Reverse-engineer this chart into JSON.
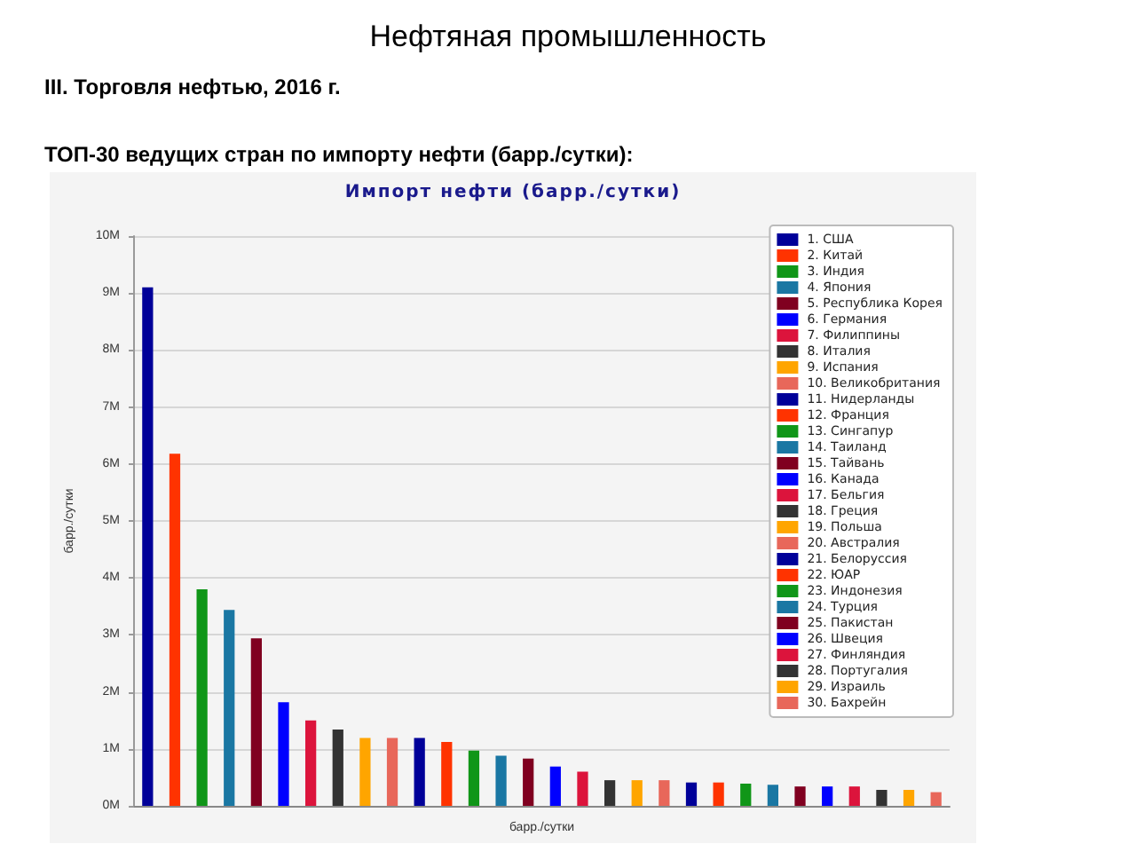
{
  "chart_data": {
    "type": "bar",
    "title": "Нефтяная промышленность",
    "subtitle": "III. Торговля нефтью, 2016 г.",
    "annotations": [
      "ТОП-30 ведущих стран по импорту нефти (барр./сутки):",
      "Импорт нефти (барр./сутки)"
    ],
    "xlabel": "барр./сутки",
    "ylabel": "барр./сутки",
    "categories": [
      null,
      null,
      null,
      null,
      null,
      null,
      null,
      null,
      null,
      null,
      null,
      null,
      null,
      null,
      null,
      null,
      null,
      null,
      null,
      null,
      null,
      null,
      null,
      null,
      null,
      null,
      null,
      null,
      null,
      null
    ],
    "ylim": [
      0,
      10
    ],
    "yticks": [
      {
        "value": 0,
        "label": "0M"
      },
      {
        "value": 1,
        "label": "1M"
      },
      {
        "value": 2,
        "label": "2M"
      },
      {
        "value": 3,
        "label": "3M"
      },
      {
        "value": 4,
        "label": "4M"
      },
      {
        "value": 5,
        "label": "5M"
      },
      {
        "value": 6,
        "label": "6M"
      },
      {
        "value": 7,
        "label": "7M"
      },
      {
        "value": 8,
        "label": "8M"
      },
      {
        "value": 9,
        "label": "9M"
      },
      {
        "value": 10,
        "label": "10M"
      }
    ],
    "grid": "y",
    "legend": "top right",
    "stacked": true,
    "series": [
      {
        "name": "1. США",
        "color": "#000099",
        "values": [
          9.1,
          null,
          null,
          null,
          null,
          null,
          null,
          null,
          null,
          null,
          null,
          null,
          null,
          null,
          null,
          null,
          null,
          null,
          null,
          null,
          null,
          null,
          null,
          null,
          null,
          null,
          null,
          null,
          null,
          null
        ]
      },
      {
        "name": "2. Китай",
        "color": "#ff3300",
        "values": [
          null,
          6.18,
          null,
          null,
          null,
          null,
          null,
          null,
          null,
          null,
          null,
          null,
          null,
          null,
          null,
          null,
          null,
          null,
          null,
          null,
          null,
          null,
          null,
          null,
          null,
          null,
          null,
          null,
          null,
          null
        ]
      },
      {
        "name": "3. Индия",
        "color": "#109618",
        "values": [
          null,
          null,
          3.8,
          null,
          null,
          null,
          null,
          null,
          null,
          null,
          null,
          null,
          null,
          null,
          null,
          null,
          null,
          null,
          null,
          null,
          null,
          null,
          null,
          null,
          null,
          null,
          null,
          null,
          null,
          null
        ]
      },
      {
        "name": "4. Япония",
        "color": "#1a77a3",
        "values": [
          null,
          null,
          null,
          3.44,
          null,
          null,
          null,
          null,
          null,
          null,
          null,
          null,
          null,
          null,
          null,
          null,
          null,
          null,
          null,
          null,
          null,
          null,
          null,
          null,
          null,
          null,
          null,
          null,
          null,
          null
        ]
      },
      {
        "name": "5. Республика Корея",
        "color": "#800020",
        "values": [
          null,
          null,
          null,
          null,
          2.94,
          null,
          null,
          null,
          null,
          null,
          null,
          null,
          null,
          null,
          null,
          null,
          null,
          null,
          null,
          null,
          null,
          null,
          null,
          null,
          null,
          null,
          null,
          null,
          null,
          null
        ]
      },
      {
        "name": "6. Германия",
        "color": "#0000ff",
        "values": [
          null,
          null,
          null,
          null,
          null,
          1.82,
          null,
          null,
          null,
          null,
          null,
          null,
          null,
          null,
          null,
          null,
          null,
          null,
          null,
          null,
          null,
          null,
          null,
          null,
          null,
          null,
          null,
          null,
          null,
          null
        ]
      },
      {
        "name": "7. Филиппины",
        "color": "#dc143c",
        "values": [
          null,
          null,
          null,
          null,
          null,
          null,
          1.5,
          null,
          null,
          null,
          null,
          null,
          null,
          null,
          null,
          null,
          null,
          null,
          null,
          null,
          null,
          null,
          null,
          null,
          null,
          null,
          null,
          null,
          null,
          null
        ]
      },
      {
        "name": "8. Италия",
        "color": "#333333",
        "values": [
          null,
          null,
          null,
          null,
          null,
          null,
          null,
          1.34,
          null,
          null,
          null,
          null,
          null,
          null,
          null,
          null,
          null,
          null,
          null,
          null,
          null,
          null,
          null,
          null,
          null,
          null,
          null,
          null,
          null,
          null
        ]
      },
      {
        "name": "9. Испания",
        "color": "#ffa500",
        "values": [
          null,
          null,
          null,
          null,
          null,
          null,
          null,
          null,
          1.19,
          null,
          null,
          null,
          null,
          null,
          null,
          null,
          null,
          null,
          null,
          null,
          null,
          null,
          null,
          null,
          null,
          null,
          null,
          null,
          null,
          null
        ]
      },
      {
        "name": "10. Великобритания",
        "color": "#e8675a",
        "values": [
          null,
          null,
          null,
          null,
          null,
          null,
          null,
          null,
          null,
          1.19,
          null,
          null,
          null,
          null,
          null,
          null,
          null,
          null,
          null,
          null,
          null,
          null,
          null,
          null,
          null,
          null,
          null,
          null,
          null,
          null
        ]
      },
      {
        "name": "11. Нидерланды",
        "color": "#000099",
        "values": [
          null,
          null,
          null,
          null,
          null,
          null,
          null,
          null,
          null,
          null,
          1.19,
          null,
          null,
          null,
          null,
          null,
          null,
          null,
          null,
          null,
          null,
          null,
          null,
          null,
          null,
          null,
          null,
          null,
          null,
          null
        ]
      },
      {
        "name": "12. Франция",
        "color": "#ff3300",
        "values": [
          null,
          null,
          null,
          null,
          null,
          null,
          null,
          null,
          null,
          null,
          null,
          1.12,
          null,
          null,
          null,
          null,
          null,
          null,
          null,
          null,
          null,
          null,
          null,
          null,
          null,
          null,
          null,
          null,
          null,
          null
        ]
      },
      {
        "name": "13. Сингапур",
        "color": "#109618",
        "values": [
          null,
          null,
          null,
          null,
          null,
          null,
          null,
          null,
          null,
          null,
          null,
          null,
          0.97,
          null,
          null,
          null,
          null,
          null,
          null,
          null,
          null,
          null,
          null,
          null,
          null,
          null,
          null,
          null,
          null,
          null
        ]
      },
      {
        "name": "14. Таиланд",
        "color": "#1a77a3",
        "values": [
          null,
          null,
          null,
          null,
          null,
          null,
          null,
          null,
          null,
          null,
          null,
          null,
          null,
          0.88,
          null,
          null,
          null,
          null,
          null,
          null,
          null,
          null,
          null,
          null,
          null,
          null,
          null,
          null,
          null,
          null
        ]
      },
      {
        "name": "15. Тайвань",
        "color": "#800020",
        "values": [
          null,
          null,
          null,
          null,
          null,
          null,
          null,
          null,
          null,
          null,
          null,
          null,
          null,
          null,
          0.83,
          null,
          null,
          null,
          null,
          null,
          null,
          null,
          null,
          null,
          null,
          null,
          null,
          null,
          null,
          null
        ]
      },
      {
        "name": "16. Канада",
        "color": "#0000ff",
        "values": [
          null,
          null,
          null,
          null,
          null,
          null,
          null,
          null,
          null,
          null,
          null,
          null,
          null,
          null,
          null,
          0.69,
          null,
          null,
          null,
          null,
          null,
          null,
          null,
          null,
          null,
          null,
          null,
          null,
          null,
          null
        ]
      },
      {
        "name": "17. Бельгия",
        "color": "#dc143c",
        "values": [
          null,
          null,
          null,
          null,
          null,
          null,
          null,
          null,
          null,
          null,
          null,
          null,
          null,
          null,
          null,
          null,
          0.6,
          null,
          null,
          null,
          null,
          null,
          null,
          null,
          null,
          null,
          null,
          null,
          null,
          null
        ]
      },
      {
        "name": "18. Греция",
        "color": "#333333",
        "values": [
          null,
          null,
          null,
          null,
          null,
          null,
          null,
          null,
          null,
          null,
          null,
          null,
          null,
          null,
          null,
          null,
          null,
          0.45,
          null,
          null,
          null,
          null,
          null,
          null,
          null,
          null,
          null,
          null,
          null,
          null
        ]
      },
      {
        "name": "19. Польша",
        "color": "#ffa500",
        "values": [
          null,
          null,
          null,
          null,
          null,
          null,
          null,
          null,
          null,
          null,
          null,
          null,
          null,
          null,
          null,
          null,
          null,
          null,
          0.45,
          null,
          null,
          null,
          null,
          null,
          null,
          null,
          null,
          null,
          null,
          null
        ]
      },
      {
        "name": "20. Австралия",
        "color": "#e8675a",
        "values": [
          null,
          null,
          null,
          null,
          null,
          null,
          null,
          null,
          null,
          null,
          null,
          null,
          null,
          null,
          null,
          null,
          null,
          null,
          null,
          0.45,
          null,
          null,
          null,
          null,
          null,
          null,
          null,
          null,
          null,
          null
        ]
      },
      {
        "name": "21. Белоруссия",
        "color": "#000099",
        "values": [
          null,
          null,
          null,
          null,
          null,
          null,
          null,
          null,
          null,
          null,
          null,
          null,
          null,
          null,
          null,
          null,
          null,
          null,
          null,
          null,
          0.41,
          null,
          null,
          null,
          null,
          null,
          null,
          null,
          null,
          null
        ]
      },
      {
        "name": "22. ЮАР",
        "color": "#ff3300",
        "values": [
          null,
          null,
          null,
          null,
          null,
          null,
          null,
          null,
          null,
          null,
          null,
          null,
          null,
          null,
          null,
          null,
          null,
          null,
          null,
          null,
          null,
          0.41,
          null,
          null,
          null,
          null,
          null,
          null,
          null,
          null
        ]
      },
      {
        "name": "23. Индонезия",
        "color": "#109618",
        "values": [
          null,
          null,
          null,
          null,
          null,
          null,
          null,
          null,
          null,
          null,
          null,
          null,
          null,
          null,
          null,
          null,
          null,
          null,
          null,
          null,
          null,
          null,
          0.39,
          null,
          null,
          null,
          null,
          null,
          null,
          null
        ]
      },
      {
        "name": "24. Турция",
        "color": "#1a77a3",
        "values": [
          null,
          null,
          null,
          null,
          null,
          null,
          null,
          null,
          null,
          null,
          null,
          null,
          null,
          null,
          null,
          null,
          null,
          null,
          null,
          null,
          null,
          null,
          null,
          0.37,
          null,
          null,
          null,
          null,
          null,
          null
        ]
      },
      {
        "name": "25. Пакистан",
        "color": "#800020",
        "values": [
          null,
          null,
          null,
          null,
          null,
          null,
          null,
          null,
          null,
          null,
          null,
          null,
          null,
          null,
          null,
          null,
          null,
          null,
          null,
          null,
          null,
          null,
          null,
          null,
          0.34,
          null,
          null,
          null,
          null,
          null
        ]
      },
      {
        "name": "26. Швеция",
        "color": "#0000ff",
        "values": [
          null,
          null,
          null,
          null,
          null,
          null,
          null,
          null,
          null,
          null,
          null,
          null,
          null,
          null,
          null,
          null,
          null,
          null,
          null,
          null,
          null,
          null,
          null,
          null,
          null,
          0.34,
          null,
          null,
          null,
          null
        ]
      },
      {
        "name": "27. Финляндия",
        "color": "#dc143c",
        "values": [
          null,
          null,
          null,
          null,
          null,
          null,
          null,
          null,
          null,
          null,
          null,
          null,
          null,
          null,
          null,
          null,
          null,
          null,
          null,
          null,
          null,
          null,
          null,
          null,
          null,
          null,
          0.34,
          null,
          null,
          null
        ]
      },
      {
        "name": "28. Португалия",
        "color": "#333333",
        "values": [
          null,
          null,
          null,
          null,
          null,
          null,
          null,
          null,
          null,
          null,
          null,
          null,
          null,
          null,
          null,
          null,
          null,
          null,
          null,
          null,
          null,
          null,
          null,
          null,
          null,
          null,
          null,
          0.28,
          null,
          null
        ]
      },
      {
        "name": "29. Израиль",
        "color": "#ffa500",
        "values": [
          null,
          null,
          null,
          null,
          null,
          null,
          null,
          null,
          null,
          null,
          null,
          null,
          null,
          null,
          null,
          null,
          null,
          null,
          null,
          null,
          null,
          null,
          null,
          null,
          null,
          null,
          null,
          null,
          0.28,
          null
        ]
      },
      {
        "name": "30. Бахрейн",
        "color": "#e8675a",
        "values": [
          null,
          null,
          null,
          null,
          null,
          null,
          null,
          null,
          null,
          null,
          null,
          null,
          null,
          null,
          null,
          null,
          null,
          null,
          null,
          null,
          null,
          null,
          null,
          null,
          null,
          null,
          null,
          null,
          null,
          0.24
        ]
      }
    ]
  }
}
